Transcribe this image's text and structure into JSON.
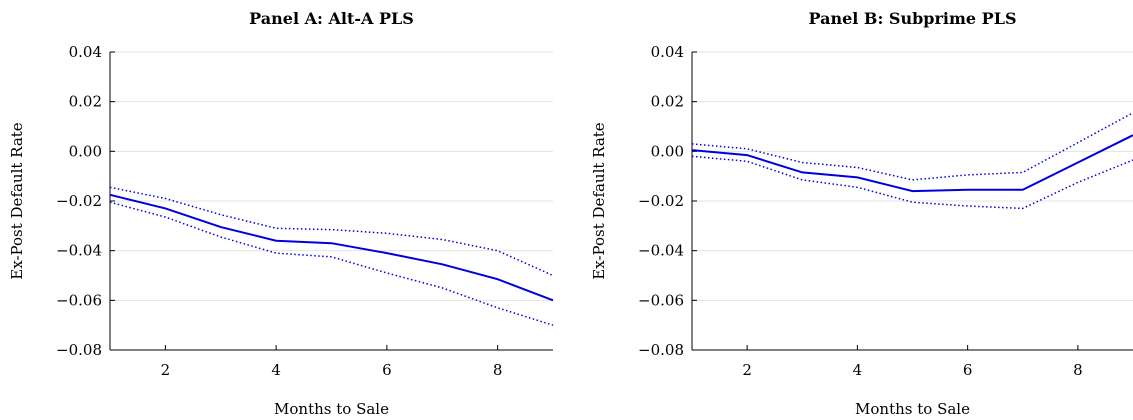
{
  "chart_data": [
    {
      "type": "line",
      "title": "Panel A: Alt-A PLS",
      "xlabel": "Months to Sale",
      "ylabel": "Ex-Post Default Rate",
      "xlim": [
        1,
        9
      ],
      "ylim": [
        -0.08,
        0.04
      ],
      "xticks": [
        2,
        4,
        6,
        8
      ],
      "xtick_labels": [
        "2",
        "4",
        "6",
        "8"
      ],
      "yticks": [
        0.04,
        0.02,
        0.0,
        -0.02,
        -0.04,
        -0.06,
        -0.08
      ],
      "ytick_labels": [
        "0.04",
        "0.02",
        "0.00",
        "−0.02",
        "−0.04",
        "−0.06",
        "−0.08"
      ],
      "grid": true,
      "x": [
        1,
        2,
        3,
        4,
        5,
        6,
        7,
        8,
        9
      ],
      "series": [
        {
          "style": "solid",
          "color": "#0000dd",
          "values": [
            -0.0175,
            -0.023,
            -0.0305,
            -0.036,
            -0.037,
            -0.041,
            -0.0455,
            -0.0515,
            -0.06
          ]
        },
        {
          "style": "dotted",
          "color": "#0000dd",
          "values": [
            -0.0145,
            -0.019,
            -0.0255,
            -0.031,
            -0.0315,
            -0.033,
            -0.0355,
            -0.04,
            -0.05
          ]
        },
        {
          "style": "dotted",
          "color": "#0000dd",
          "values": [
            -0.0205,
            -0.0265,
            -0.0345,
            -0.041,
            -0.0425,
            -0.049,
            -0.055,
            -0.063,
            -0.07
          ]
        }
      ]
    },
    {
      "type": "line",
      "title": "Panel B: Subprime PLS",
      "xlabel": "Months to Sale",
      "ylabel": "Ex-Post Default Rate",
      "xlim": [
        1,
        9
      ],
      "ylim": [
        -0.08,
        0.04
      ],
      "xticks": [
        2,
        4,
        6,
        8
      ],
      "xtick_labels": [
        "2",
        "4",
        "6",
        "8"
      ],
      "yticks": [
        0.04,
        0.02,
        0.0,
        -0.02,
        -0.04,
        -0.06,
        -0.08
      ],
      "ytick_labels": [
        "0.04",
        "0.02",
        "0.00",
        "−0.02",
        "−0.04",
        "−0.06",
        "−0.08"
      ],
      "grid": true,
      "x": [
        1,
        2,
        3,
        4,
        5,
        6,
        7,
        8,
        9
      ],
      "series": [
        {
          "style": "solid",
          "color": "#0000dd",
          "values": [
            0.0005,
            -0.0015,
            -0.0085,
            -0.0105,
            -0.016,
            -0.0155,
            -0.0155,
            -0.0045,
            0.0065
          ]
        },
        {
          "style": "dotted",
          "color": "#0000dd",
          "values": [
            0.003,
            0.001,
            -0.0045,
            -0.0065,
            -0.0115,
            -0.0095,
            -0.0085,
            0.0035,
            0.0155
          ]
        },
        {
          "style": "dotted",
          "color": "#0000dd",
          "values": [
            -0.002,
            -0.004,
            -0.0115,
            -0.0145,
            -0.0205,
            -0.022,
            -0.023,
            -0.0125,
            -0.0035
          ]
        }
      ]
    }
  ]
}
